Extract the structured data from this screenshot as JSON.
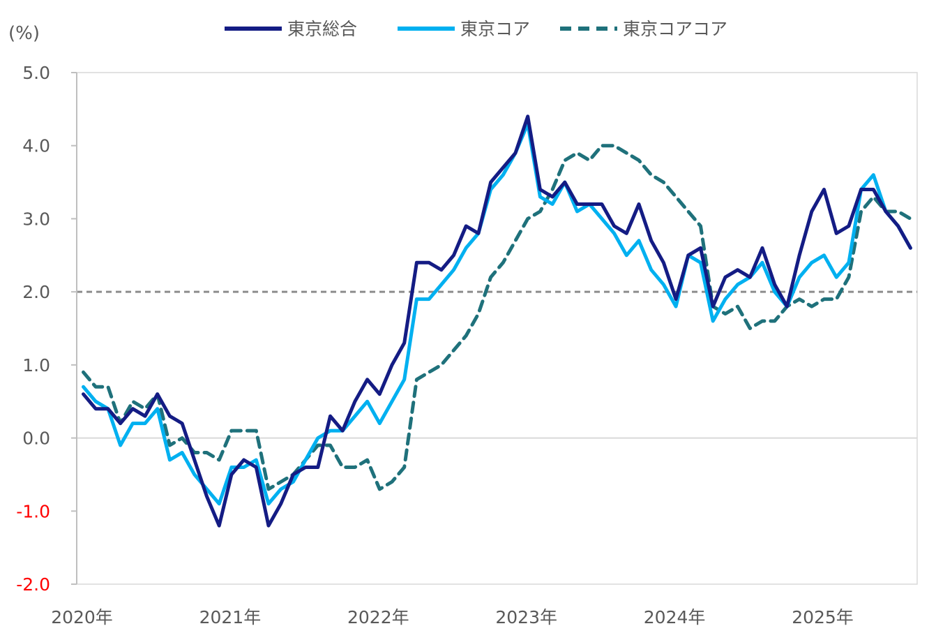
{
  "chart_data": {
    "type": "line",
    "title": "",
    "ylabel": "(%)",
    "xlabel": "",
    "ylim": [
      -2.0,
      5.0
    ],
    "yticks": [
      "5.0",
      "4.0",
      "3.0",
      "2.0",
      "1.0",
      "0.0",
      "-1.0",
      "-2.0"
    ],
    "ytick_values": [
      5,
      4,
      3,
      2,
      1,
      0,
      -1,
      -2
    ],
    "xtick_labels": [
      "2020年",
      "2021年",
      "2022年",
      "2023年",
      "2024年",
      "2025年"
    ],
    "x_start": "2020-01",
    "x_end": "2025-08",
    "legend_position": "top-center",
    "reference_line": {
      "value": 2.0,
      "color": "#8c8c8c",
      "style": "dashed"
    },
    "negative_tick_color": "#ff0000",
    "series": [
      {
        "name": "東京総合",
        "color": "#141c84",
        "style": "solid",
        "values": [
          0.6,
          0.4,
          0.4,
          0.2,
          0.4,
          0.3,
          0.6,
          0.3,
          0.2,
          -0.3,
          -0.8,
          -1.2,
          -0.5,
          -0.3,
          -0.4,
          -1.2,
          -0.9,
          -0.5,
          -0.4,
          -0.4,
          0.3,
          0.1,
          0.5,
          0.8,
          0.6,
          1.0,
          1.3,
          2.4,
          2.4,
          2.3,
          2.5,
          2.9,
          2.8,
          3.5,
          3.7,
          3.9,
          4.4,
          3.4,
          3.3,
          3.5,
          3.2,
          3.2,
          3.2,
          2.9,
          2.8,
          3.2,
          2.7,
          2.4,
          1.9,
          2.5,
          2.6,
          1.8,
          2.2,
          2.3,
          2.2,
          2.6,
          2.1,
          1.8,
          2.5,
          3.1,
          3.4,
          2.8,
          2.9,
          3.4,
          3.4,
          3.1,
          2.9,
          2.6
        ]
      },
      {
        "name": "東京コア",
        "color": "#00b0f0",
        "style": "solid",
        "values": [
          0.7,
          0.5,
          0.4,
          -0.1,
          0.2,
          0.2,
          0.4,
          -0.3,
          -0.2,
          -0.5,
          -0.7,
          -0.9,
          -0.4,
          -0.4,
          -0.3,
          -0.9,
          -0.7,
          -0.6,
          -0.3,
          0.0,
          0.1,
          0.1,
          0.3,
          0.5,
          0.2,
          0.5,
          0.8,
          1.9,
          1.9,
          2.1,
          2.3,
          2.6,
          2.8,
          3.4,
          3.6,
          3.9,
          4.3,
          3.3,
          3.2,
          3.5,
          3.1,
          3.2,
          3.0,
          2.8,
          2.5,
          2.7,
          2.3,
          2.1,
          1.8,
          2.5,
          2.4,
          1.6,
          1.9,
          2.1,
          2.2,
          2.4,
          2.0,
          1.8,
          2.2,
          2.4,
          2.5,
          2.2,
          2.4,
          3.4,
          3.6,
          3.1,
          2.9,
          2.6
        ]
      },
      {
        "name": "東京コアコア",
        "color": "#1f717b",
        "style": "dashed",
        "values": [
          0.9,
          0.7,
          0.7,
          0.2,
          0.5,
          0.4,
          0.6,
          -0.1,
          0.0,
          -0.2,
          -0.2,
          -0.3,
          0.1,
          0.1,
          0.1,
          -0.7,
          -0.6,
          -0.5,
          -0.3,
          -0.1,
          -0.1,
          -0.4,
          -0.4,
          -0.3,
          -0.7,
          -0.6,
          -0.4,
          0.8,
          0.9,
          1.0,
          1.2,
          1.4,
          1.7,
          2.2,
          2.4,
          2.7,
          3.0,
          3.1,
          3.4,
          3.8,
          3.9,
          3.8,
          4.0,
          4.0,
          3.9,
          3.8,
          3.6,
          3.5,
          3.3,
          3.1,
          2.9,
          1.8,
          1.7,
          1.8,
          1.5,
          1.6,
          1.6,
          1.8,
          1.9,
          1.8,
          1.9,
          1.9,
          2.2,
          3.1,
          3.3,
          3.1,
          3.1,
          3.0
        ]
      }
    ]
  }
}
